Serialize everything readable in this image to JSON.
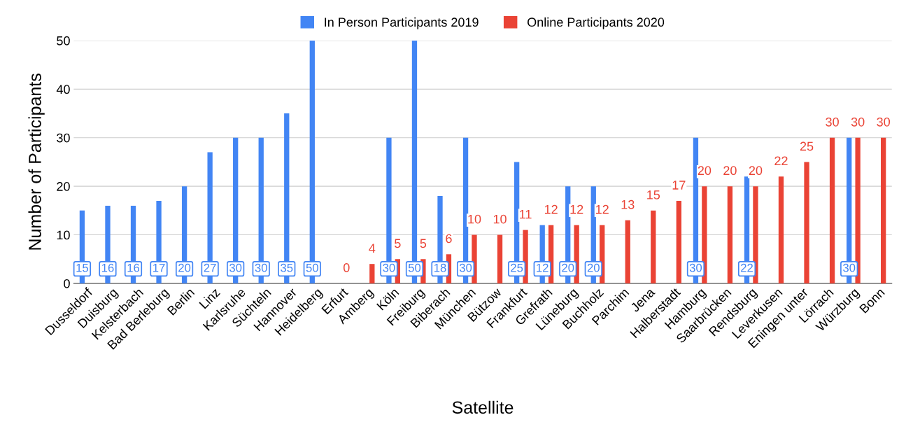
{
  "chart_data": {
    "type": "bar",
    "xlabel": "Satellite",
    "ylabel": "Number of Participants",
    "categories": [
      "Dusseldorf",
      "Duisburg",
      "Kelsterbach",
      "Bad Berleburg",
      "Berlin",
      "Linz",
      "Karlsruhe",
      "Süchteln",
      "Hannover",
      "Heidelberg",
      "Erfurt",
      "Amberg",
      "Köln",
      "Freiburg",
      "Biberach",
      "München",
      "Bützow",
      "Frankfurt",
      "Grefrath",
      "Lüneburg",
      "Buchholz",
      "Parchim",
      "Jena",
      "Halberstadt",
      "Hamburg",
      "Saarbrücken",
      "Rendsburg",
      "Leverkusen",
      "Eningen unter",
      "Lörrach",
      "Würzburg",
      "Bonn"
    ],
    "series": [
      {
        "name": "In Person Participants 2019",
        "color": "#4285f4",
        "values": [
          15,
          16,
          16,
          17,
          20,
          27,
          30,
          30,
          35,
          50,
          null,
          null,
          30,
          50,
          18,
          30,
          null,
          25,
          12,
          20,
          20,
          null,
          null,
          null,
          30,
          null,
          22,
          null,
          null,
          null,
          30,
          null
        ]
      },
      {
        "name": "Online Participants 2020",
        "color": "#ea4335",
        "values": [
          null,
          null,
          null,
          null,
          null,
          null,
          null,
          null,
          null,
          null,
          0,
          4,
          5,
          5,
          6,
          10,
          10,
          11,
          12,
          12,
          12,
          13,
          15,
          17,
          20,
          20,
          20,
          22,
          25,
          30,
          30,
          30
        ]
      }
    ],
    "ylim": [
      0,
      50
    ],
    "yticks": [
      0,
      10,
      20,
      30,
      40,
      50
    ],
    "grid": "y",
    "legend": "top",
    "data_labels": true
  }
}
